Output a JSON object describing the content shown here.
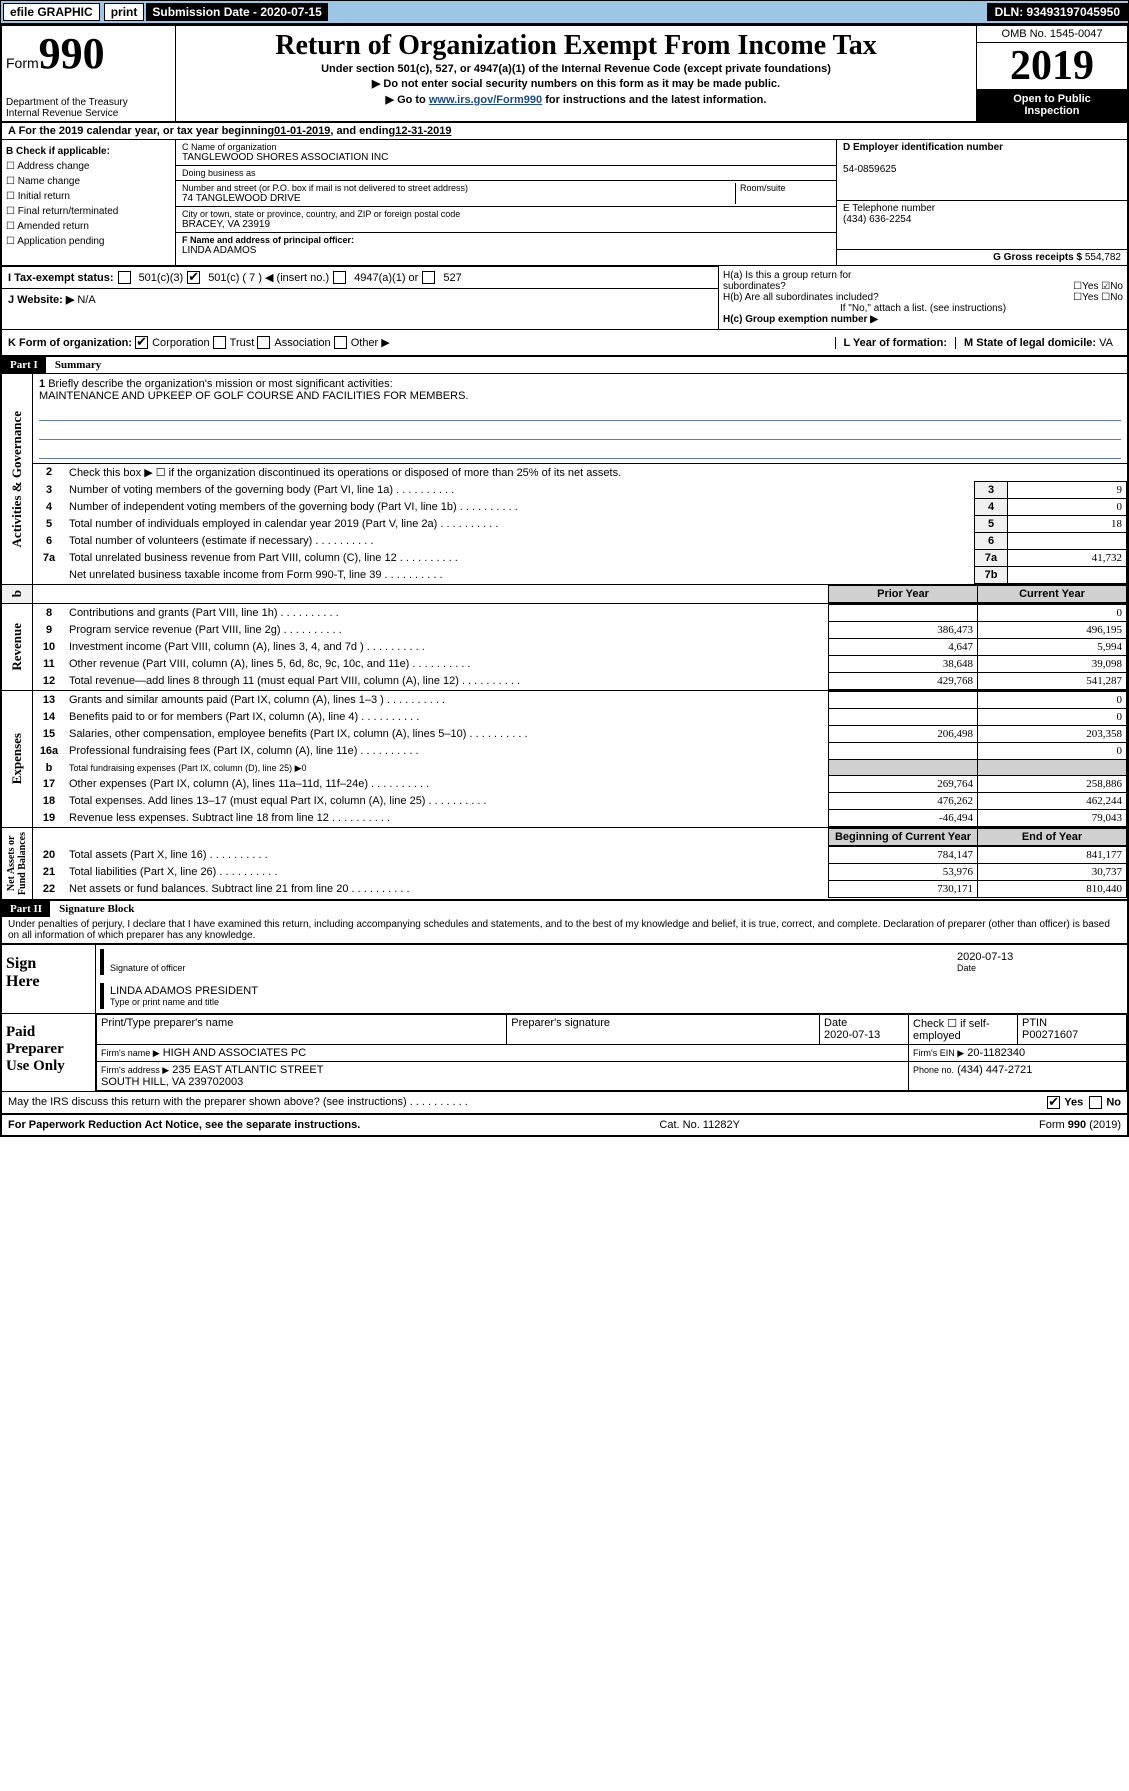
{
  "topbar": {
    "efile": "efile GRAPHIC",
    "print": "print",
    "subdate_label": "Submission Date - 2020-07-15",
    "dln": "DLN: 93493197045950"
  },
  "header": {
    "form_prefix": "Form",
    "form_number": "990",
    "title": "Return of Organization Exempt From Income Tax",
    "subtitle": "Under section 501(c), 527, or 4947(a)(1) of the Internal Revenue Code (except private foundations)",
    "note1": "▶ Do not enter social security numbers on this form as it may be made public.",
    "note2_pre": "▶ Go to ",
    "note2_link": "www.irs.gov/Form990",
    "note2_post": " for instructions and the latest information.",
    "dept": "Department of the Treasury\nInternal Revenue Service",
    "omb": "OMB No. 1545-0047",
    "year": "2019",
    "open": "Open to Public\nInspection"
  },
  "rowA": {
    "text_pre": "A For the 2019 calendar year, or tax year beginning ",
    "begin": "01-01-2019",
    "mid": " , and ending ",
    "end": "12-31-2019"
  },
  "colB": {
    "hdr": "B Check if applicable:",
    "items": [
      "Address change",
      "Name change",
      "Initial return",
      "Final return/terminated",
      "Amended return",
      "Application pending"
    ]
  },
  "colC": {
    "name_lbl": "C Name of organization",
    "name": "TANGLEWOOD SHORES ASSOCIATION INC",
    "dba_lbl": "Doing business as",
    "dba": "",
    "addr_lbl": "Number and street (or P.O. box if mail is not delivered to street address)",
    "addr1": "74 TANGLEWOOD DRIVE",
    "room_lbl": "Room/suite",
    "city_lbl": "City or town, state or province, country, and ZIP or foreign postal code",
    "city": "BRACEY, VA  23919",
    "officer_lbl": "F Name and address of principal officer:",
    "officer": "LINDA ADAMOS"
  },
  "colD": {
    "ein_lbl": "D Employer identification number",
    "ein": "54-0859625",
    "tel_lbl": "E Telephone number",
    "tel": "(434) 636-2254",
    "gross_lbl": "G Gross receipts $",
    "gross": "554,782"
  },
  "H": {
    "a_lbl": "H(a)  Is this a group return for\n          subordinates?",
    "b_lbl": "H(b)  Are all subordinates included?",
    "b_note": "If \"No,\" attach a list. (see instructions)",
    "c_lbl": "H(c)  Group exemption number ▶",
    "yes": "Yes",
    "no": "No"
  },
  "I": {
    "lbl": "I   Tax-exempt status:",
    "opt1": "501(c)(3)",
    "opt2": "501(c) ( 7 ) ◀ (insert no.)",
    "opt3": "4947(a)(1) or",
    "opt4": "527"
  },
  "J": {
    "lbl": "J   Website: ▶",
    "val": "N/A"
  },
  "K": {
    "lbl": "K Form of organization:",
    "opts": [
      "Corporation",
      "Trust",
      "Association",
      "Other ▶"
    ]
  },
  "L": {
    "lbl": "L Year of formation:",
    "val": ""
  },
  "M": {
    "lbl": "M State of legal domicile:",
    "val": "VA"
  },
  "part1_hdr": "Part I",
  "part1_title": "Summary",
  "line1": {
    "lbl": "1",
    "text": "Briefly describe the organization's mission or most significant activities:",
    "val": "MAINTENANCE AND UPKEEP OF GOLF COURSE AND FACILITIES FOR MEMBERS."
  },
  "line2": {
    "lbl": "2",
    "text": "Check this box ▶ ☐  if the organization discontinued its operations or disposed of more than 25% of its net assets."
  },
  "gov_rows": [
    {
      "n": "3",
      "t": "Number of voting members of the governing body (Part VI, line 1a)",
      "box": "3",
      "v": "9"
    },
    {
      "n": "4",
      "t": "Number of independent voting members of the governing body (Part VI, line 1b)",
      "box": "4",
      "v": "0"
    },
    {
      "n": "5",
      "t": "Total number of individuals employed in calendar year 2019 (Part V, line 2a)",
      "box": "5",
      "v": "18"
    },
    {
      "n": "6",
      "t": "Total number of volunteers (estimate if necessary)",
      "box": "6",
      "v": ""
    },
    {
      "n": "7a",
      "t": "Total unrelated business revenue from Part VIII, column (C), line 12",
      "box": "7a",
      "v": "41,732"
    },
    {
      "n": "",
      "t": "Net unrelated business taxable income from Form 990-T, line 39",
      "box": "7b",
      "v": ""
    }
  ],
  "col_hdrs": {
    "prior": "Prior Year",
    "current": "Current Year"
  },
  "rev_rows": [
    {
      "n": "8",
      "t": "Contributions and grants (Part VIII, line 1h)",
      "p": "",
      "c": "0"
    },
    {
      "n": "9",
      "t": "Program service revenue (Part VIII, line 2g)",
      "p": "386,473",
      "c": "496,195"
    },
    {
      "n": "10",
      "t": "Investment income (Part VIII, column (A), lines 3, 4, and 7d )",
      "p": "4,647",
      "c": "5,994"
    },
    {
      "n": "11",
      "t": "Other revenue (Part VIII, column (A), lines 5, 6d, 8c, 9c, 10c, and 11e)",
      "p": "38,648",
      "c": "39,098"
    },
    {
      "n": "12",
      "t": "Total revenue—add lines 8 through 11 (must equal Part VIII, column (A), line 12)",
      "p": "429,768",
      "c": "541,287"
    }
  ],
  "exp_rows": [
    {
      "n": "13",
      "t": "Grants and similar amounts paid (Part IX, column (A), lines 1–3 )",
      "p": "",
      "c": "0"
    },
    {
      "n": "14",
      "t": "Benefits paid to or for members (Part IX, column (A), line 4)",
      "p": "",
      "c": "0"
    },
    {
      "n": "15",
      "t": "Salaries, other compensation, employee benefits (Part IX, column (A), lines 5–10)",
      "p": "206,498",
      "c": "203,358"
    },
    {
      "n": "16a",
      "t": "Professional fundraising fees (Part IX, column (A), line 11e)",
      "p": "",
      "c": "0"
    },
    {
      "n": "b",
      "t": "Total fundraising expenses (Part IX, column (D), line 25) ▶0",
      "p": null,
      "c": null
    },
    {
      "n": "17",
      "t": "Other expenses (Part IX, column (A), lines 11a–11d, 11f–24e)",
      "p": "269,764",
      "c": "258,886"
    },
    {
      "n": "18",
      "t": "Total expenses. Add lines 13–17 (must equal Part IX, column (A), line 25)",
      "p": "476,262",
      "c": "462,244"
    },
    {
      "n": "19",
      "t": "Revenue less expenses. Subtract line 18 from line 12",
      "p": "-46,494",
      "c": "79,043"
    }
  ],
  "net_hdrs": {
    "prior": "Beginning of Current Year",
    "current": "End of Year"
  },
  "net_rows": [
    {
      "n": "20",
      "t": "Total assets (Part X, line 16)",
      "p": "784,147",
      "c": "841,177"
    },
    {
      "n": "21",
      "t": "Total liabilities (Part X, line 26)",
      "p": "53,976",
      "c": "30,737"
    },
    {
      "n": "22",
      "t": "Net assets or fund balances. Subtract line 21 from line 20",
      "p": "730,171",
      "c": "810,440"
    }
  ],
  "side_labels": {
    "gov": "Activities & Governance",
    "rev": "Revenue",
    "exp": "Expenses",
    "net": "Net Assets or\nFund Balances"
  },
  "part2_hdr": "Part II",
  "part2_title": "Signature Block",
  "perjury": "Under penalties of perjury, I declare that I have examined this return, including accompanying schedules and statements, and to the best of my knowledge and belief, it is true, correct, and complete. Declaration of preparer (other than officer) is based on all information of which preparer has any knowledge.",
  "sign": {
    "here": "Sign\nHere",
    "sig_date": "2020-07-13",
    "sig_lbl": "Signature of officer",
    "date_lbl": "Date",
    "name": "LINDA ADAMOS PRESIDENT",
    "name_lbl": "Type or print name and title"
  },
  "paid": {
    "hdr": "Paid\nPreparer\nUse Only",
    "cols": [
      "Print/Type preparer's name",
      "Preparer's signature",
      "Date",
      "",
      "PTIN"
    ],
    "date": "2020-07-13",
    "selfemp": "Check ☐ if self-employed",
    "ptin": "P00271607",
    "firm_lbl": "Firm's name  ▶",
    "firm": "HIGH AND ASSOCIATES PC",
    "ein_lbl": "Firm's EIN ▶",
    "ein": "20-1182340",
    "addr_lbl": "Firm's address ▶",
    "addr": "235 EAST ATLANTIC STREET\nSOUTH HILL, VA  239702003",
    "phone_lbl": "Phone no.",
    "phone": "(434) 447-2721"
  },
  "discuss": {
    "q": "May the IRS discuss this return with the preparer shown above? (see instructions)",
    "yes": "Yes",
    "no": "No"
  },
  "footer": {
    "left": "For Paperwork Reduction Act Notice, see the separate instructions.",
    "mid": "Cat. No. 11282Y",
    "right": "Form 990 (2019)"
  }
}
